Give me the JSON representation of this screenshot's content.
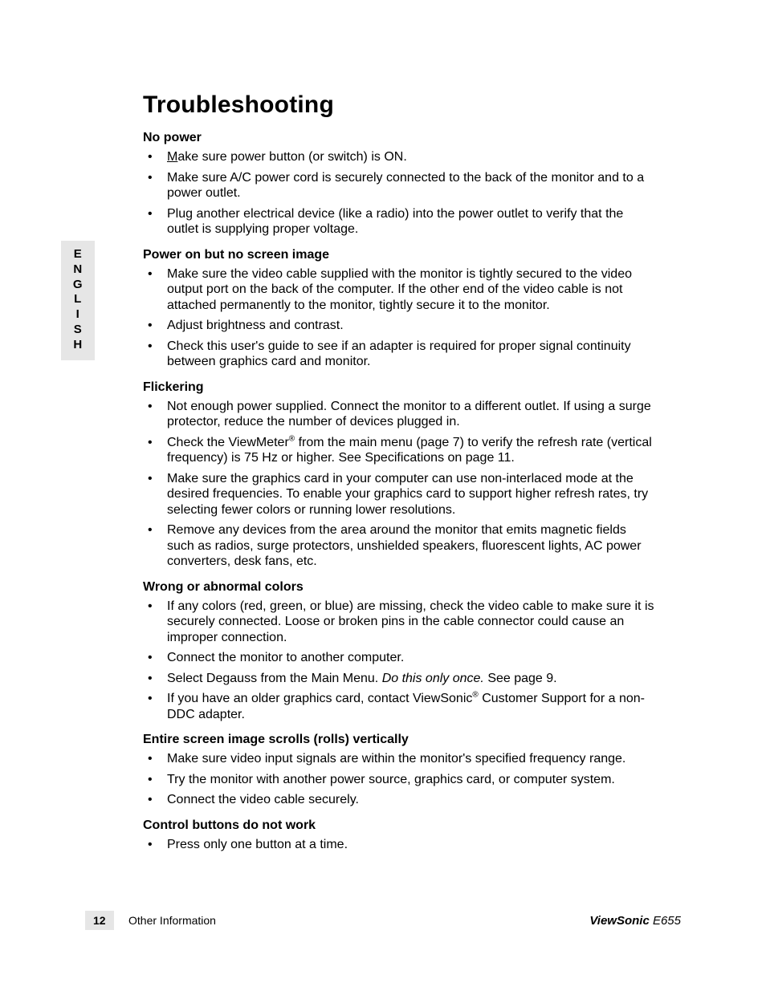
{
  "language_tab": [
    "E",
    "N",
    "G",
    "L",
    "I",
    "S",
    "H"
  ],
  "title": "Troubleshooting",
  "sections": [
    {
      "heading": "No power",
      "items": [
        {
          "text": "Make sure power button (or switch) is ON.",
          "underlineFirst": true
        },
        {
          "text": "Make sure A/C power cord is securely connected to the back of the monitor and to a power outlet."
        },
        {
          "text": "Plug another electrical device (like a radio) into the power outlet to verify that the outlet is supplying proper voltage."
        }
      ]
    },
    {
      "heading": "Power on but no screen image",
      "items": [
        {
          "text": "Make sure the video cable supplied with the monitor is tightly secured to the video output port on the back of the computer. If the other end of the video cable is not attached permanently to the monitor, tightly secure it to the monitor."
        },
        {
          "text": "Adjust brightness and contrast."
        },
        {
          "text": "Check this user's guide to see if an adapter is required for proper signal continuity between graphics card and monitor."
        }
      ]
    },
    {
      "heading": "Flickering",
      "items": [
        {
          "text": "Not enough power supplied. Connect the monitor to a different outlet. If using a surge protector, reduce the number of devices plugged in."
        },
        {
          "parts": [
            {
              "t": "Check the ViewMeter"
            },
            {
              "t": "®",
              "sup": true
            },
            {
              "t": " from the main menu (page 7) to verify the refresh rate (vertical frequency) is 75 Hz or higher. See Specifications on page 11."
            }
          ]
        },
        {
          "text": "Make sure the graphics card in your computer can use non-interlaced mode at the desired frequencies. To enable your graphics card to support higher refresh rates, try selecting fewer colors or running lower resolutions."
        },
        {
          "text": "Remove any devices from the area around the monitor that emits magnetic fields such as radios, surge protectors, unshielded speakers, fluorescent lights, AC power converters, desk fans, etc."
        }
      ]
    },
    {
      "heading": "Wrong or abnormal colors",
      "items": [
        {
          "text": "If any colors (red, green, or blue) are missing, check the video cable to make sure it is securely connected. Loose or broken pins in the cable connector could cause an improper connection."
        },
        {
          "text": "Connect the monitor to another computer."
        },
        {
          "parts": [
            {
              "t": "Select Degauss from the Main Menu. "
            },
            {
              "t": "Do this only once.",
              "italic": true
            },
            {
              "t": " See page 9."
            }
          ]
        },
        {
          "parts": [
            {
              "t": "If you have an older graphics card, contact ViewSonic"
            },
            {
              "t": "®",
              "sup": true
            },
            {
              "t": " Customer Support for a non-DDC adapter."
            }
          ]
        }
      ]
    },
    {
      "heading": "Entire screen image scrolls (rolls) vertically",
      "items": [
        {
          "text": "Make sure video input signals are within the monitor's specified frequency range."
        },
        {
          "text": "Try the monitor with another power source, graphics card, or computer system."
        },
        {
          "text": "Connect the video cable securely."
        }
      ]
    },
    {
      "heading": "Control buttons do not work",
      "items": [
        {
          "text": "Press only one button at a time."
        }
      ]
    }
  ],
  "footer": {
    "page_number": "12",
    "section_name": "Other Information",
    "brand": "ViewSonic",
    "model": " E655"
  }
}
